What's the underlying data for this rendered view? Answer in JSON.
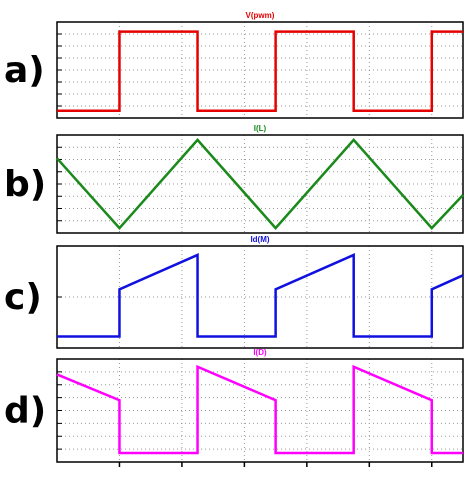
{
  "chart_data": [
    {
      "type": "line",
      "title": "V(pwm)",
      "panel_label": "a)",
      "color": "#e60000",
      "x": [
        0,
        1,
        1,
        2.25,
        2.25,
        3.5,
        3.5,
        4.75,
        4.75,
        6,
        6,
        6.5
      ],
      "values": [
        0.6,
        0.6,
        7.2,
        7.2,
        0.6,
        0.6,
        7.2,
        7.2,
        0.6,
        0.6,
        7.2,
        7.2
      ],
      "xlim": [
        0,
        6.5
      ],
      "xticks": [
        1,
        2,
        3,
        4,
        5,
        6
      ],
      "ylim": [
        0,
        8
      ],
      "yticks": [
        1,
        2,
        3,
        4,
        5,
        6,
        7
      ],
      "grid": true
    },
    {
      "type": "line",
      "title": "I(L)",
      "panel_label": "b)",
      "color": "#1a8a1a",
      "x": [
        0,
        1,
        2.25,
        3.5,
        4.75,
        6,
        6.5
      ],
      "values": [
        6.1,
        0.4,
        7.6,
        0.4,
        7.6,
        0.4,
        3.1
      ],
      "xlim": [
        0,
        6.5
      ],
      "xticks": [
        1,
        2,
        3,
        4,
        5,
        6
      ],
      "ylim": [
        0,
        8
      ],
      "yticks": [
        1,
        2,
        3,
        4,
        5,
        6,
        7
      ],
      "grid": true
    },
    {
      "type": "line",
      "title": "Id(M)",
      "panel_label": "c)",
      "color": "#1010e0",
      "x": [
        0,
        1,
        1,
        2.25,
        2.25,
        3.5,
        3.5,
        4.75,
        4.75,
        6,
        6,
        6.5
      ],
      "values": [
        0.9,
        0.9,
        4.6,
        7.3,
        0.9,
        0.9,
        4.6,
        7.3,
        0.9,
        0.9,
        4.6,
        5.7
      ],
      "xlim": [
        0,
        6.5
      ],
      "xticks": [
        1,
        2,
        3,
        4,
        5,
        6
      ],
      "ylim": [
        0,
        8
      ],
      "yticks": [
        4
      ],
      "grid": true
    },
    {
      "type": "line",
      "title": "I(D)",
      "panel_label": "d)",
      "color": "#ff00ff",
      "x": [
        0,
        1,
        1,
        2.25,
        2.25,
        3.5,
        3.5,
        4.75,
        4.75,
        6,
        6,
        6.5
      ],
      "values": [
        6.8,
        4.8,
        0.7,
        0.7,
        7.4,
        4.8,
        0.7,
        0.7,
        7.4,
        4.8,
        0.7,
        0.7
      ],
      "xlim": [
        0,
        6.5
      ],
      "xticks": [
        1,
        2,
        3,
        4,
        5,
        6
      ],
      "ylim": [
        0,
        8
      ],
      "yticks": [
        1,
        2,
        3,
        4,
        5,
        6,
        7
      ],
      "grid": true
    }
  ]
}
